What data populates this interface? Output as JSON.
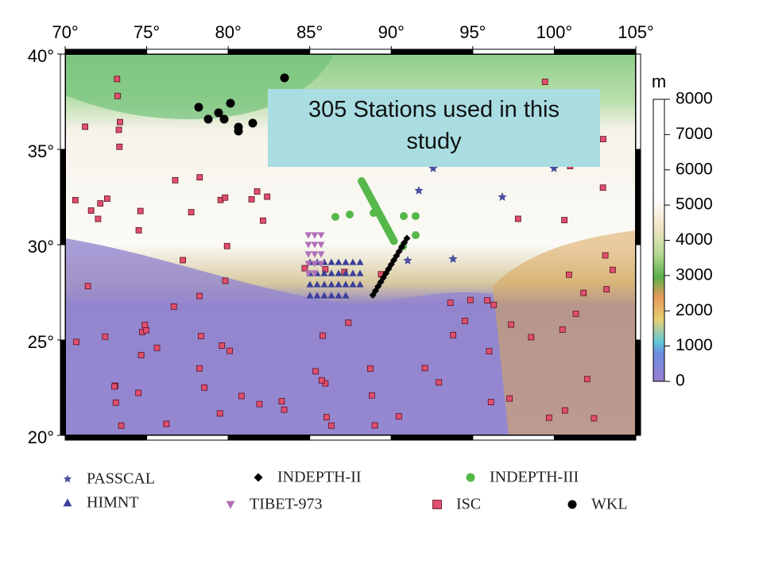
{
  "map": {
    "lon_ticks": [
      {
        "value": 70,
        "label": "70°"
      },
      {
        "value": 75,
        "label": "75°"
      },
      {
        "value": 80,
        "label": "80°"
      },
      {
        "value": 85,
        "label": "85°"
      },
      {
        "value": 90,
        "label": "90°"
      },
      {
        "value": 95,
        "label": "95°"
      },
      {
        "value": 100,
        "label": "100°"
      },
      {
        "value": 105,
        "label": "105°"
      }
    ],
    "lat_ticks": [
      {
        "value": 40,
        "label": "40°"
      },
      {
        "value": 35,
        "label": "35°"
      },
      {
        "value": 30,
        "label": "30°"
      },
      {
        "value": 25,
        "label": "25°"
      },
      {
        "value": 20,
        "label": "20°"
      }
    ],
    "colorbar": {
      "unit": "m",
      "ticks": [
        0,
        1000,
        2000,
        3000,
        4000,
        5000,
        6000,
        7000,
        8000
      ]
    },
    "callout": "305 Stations used in this study",
    "legend": [
      "PASSCAL",
      "HIMNT",
      "INDEPTH-II",
      "TIBET-973",
      "INDEPTH-III",
      "ISC",
      "WKL"
    ]
  }
}
